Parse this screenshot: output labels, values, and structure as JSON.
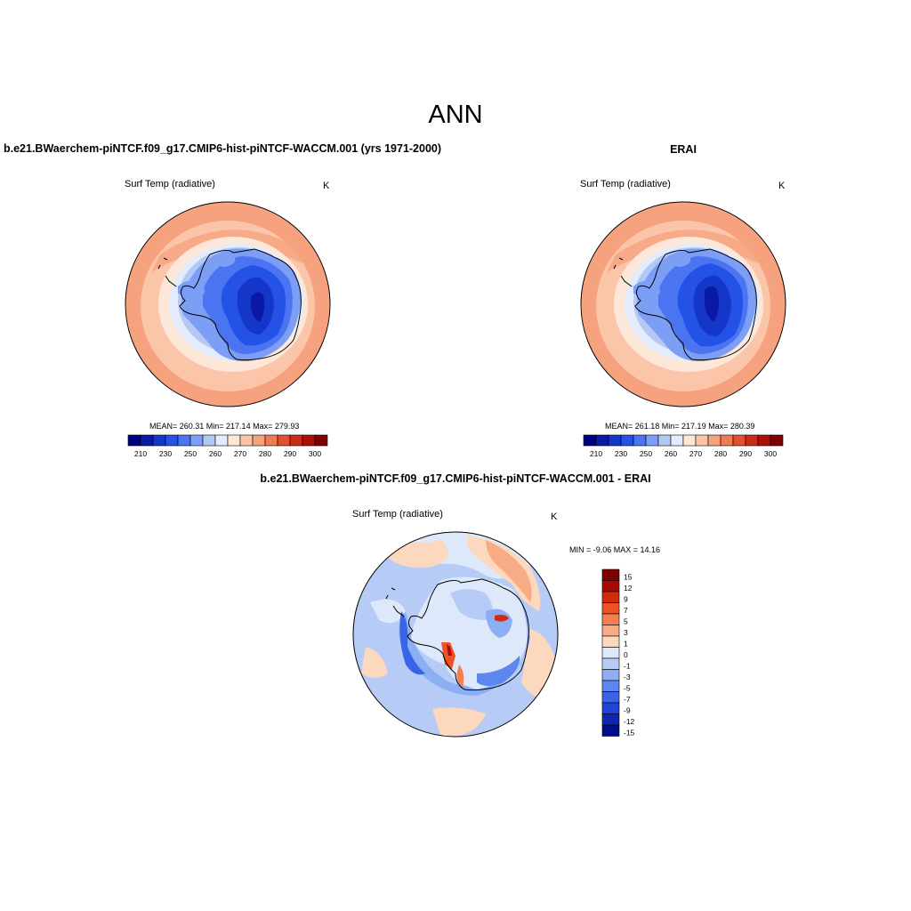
{
  "figure": {
    "season": "ANN"
  },
  "panel_model": {
    "title": "b.e21.BWaerchem-piNTCF.f09_g17.CMIP6-hist-piNTCF-WACCM.001 (yrs 1971-2000)",
    "var_name": "Surf Temp (radiative)",
    "units": "K",
    "stats": "MEAN= 260.31  Min= 217.14  Max= 279.93",
    "mean": 260.31,
    "min": 217.14,
    "max": 279.93
  },
  "panel_obs": {
    "title": "ERAI",
    "var_name": "Surf Temp (radiative)",
    "units": "K",
    "stats": "MEAN= 261.18  Min= 217.19  Max= 280.39",
    "mean": 261.18,
    "min": 217.19,
    "max": 280.39
  },
  "panel_diff": {
    "title": "b.e21.BWaerchem-piNTCF.f09_g17.CMIP6-hist-piNTCF-WACCM.001 - ERAI",
    "var_name": "Surf Temp (radiative)",
    "units": "K",
    "stats": "MIN =  -9.06 MAX =  14.16",
    "min": -9.06,
    "max": 14.16
  },
  "abs_colorbar": {
    "colors": [
      "#00007f",
      "#0a1aa6",
      "#1437c9",
      "#2452e6",
      "#4a74f2",
      "#7d9ef5",
      "#b3c8f5",
      "#e2ecfb",
      "#fde7d8",
      "#fbc5aa",
      "#f6a27e",
      "#ef7b53",
      "#e34f2b",
      "#cc2a14",
      "#a81208",
      "#7f0000"
    ],
    "labels": [
      "210",
      "230",
      "250",
      "260",
      "270",
      "280",
      "290",
      "300"
    ]
  },
  "diff_colorbar": {
    "colors": [
      "#7f0000",
      "#aa0a05",
      "#d12a0c",
      "#ee5326",
      "#f67f52",
      "#f9ab85",
      "#fcd8bf",
      "#dde9fb",
      "#b6ccf7",
      "#8caff3",
      "#5d87ee",
      "#3a64e8",
      "#1f44d8",
      "#0f26b0",
      "#000d8c"
    ],
    "labels": [
      "15",
      "12",
      "9",
      "7",
      "5",
      "3",
      "1",
      "0",
      "-1",
      "-3",
      "-5",
      "-7",
      "-9",
      "-12",
      "-15"
    ]
  },
  "chart_data": [
    {
      "type": "heatmap",
      "title": "b.e21.BWaerchem-piNTCF.f09_g17.CMIP6-hist-piNTCF-WACCM.001 (yrs 1971-2000)",
      "projection": "south polar stereographic",
      "variable": "Surf Temp (radiative)",
      "units": "K",
      "mean": 260.31,
      "min": 217.14,
      "max": 279.93,
      "levels": [
        210,
        220,
        230,
        240,
        250,
        255,
        260,
        265,
        270,
        275,
        280,
        285,
        290,
        295,
        300
      ]
    },
    {
      "type": "heatmap",
      "title": "ERAI",
      "projection": "south polar stereographic",
      "variable": "Surf Temp (radiative)",
      "units": "K",
      "mean": 261.18,
      "min": 217.19,
      "max": 280.39,
      "levels": [
        210,
        220,
        230,
        240,
        250,
        255,
        260,
        265,
        270,
        275,
        280,
        285,
        290,
        295,
        300
      ]
    },
    {
      "type": "heatmap",
      "title": "b.e21.BWaerchem-piNTCF.f09_g17.CMIP6-hist-piNTCF-WACCM.001 - ERAI",
      "projection": "south polar stereographic",
      "variable": "Surf Temp (radiative)",
      "units": "K",
      "min": -9.06,
      "max": 14.16,
      "levels": [
        -15,
        -12,
        -9,
        -7,
        -5,
        -3,
        -1,
        0,
        1,
        3,
        5,
        7,
        9,
        12,
        15
      ]
    }
  ]
}
